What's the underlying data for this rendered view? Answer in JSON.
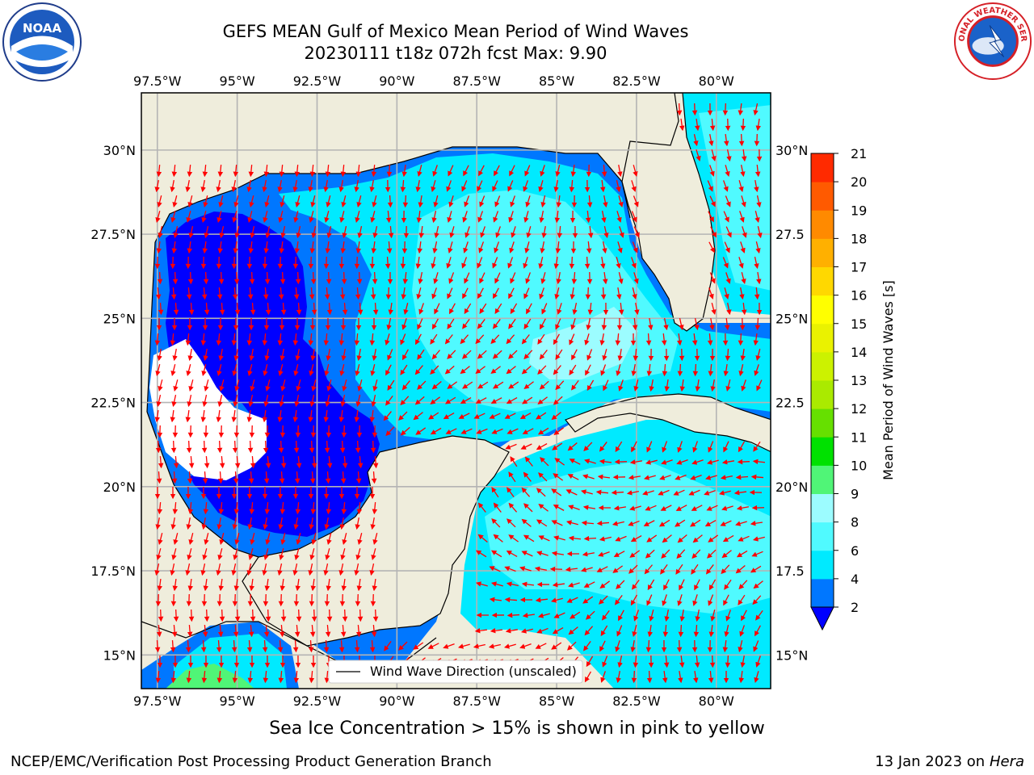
{
  "header": {
    "title_line1": "GEFS MEAN Gulf of Mexico Mean Period of Wind Waves",
    "title_line2": "20230111 t18z 072h fcst   Max: 9.90"
  },
  "logos": {
    "left": "noaa-logo",
    "right": "national-weather-service-logo",
    "left_text": "NOAA",
    "right_text": "NATIONAL WEATHER SERVICE"
  },
  "map": {
    "lon_labels": [
      "97.5°W",
      "95°W",
      "92.5°W",
      "90°W",
      "87.5°W",
      "85°W",
      "82.5°W",
      "80°W"
    ],
    "lat_labels": [
      "30°N",
      "27.5°N",
      "25°N",
      "22.5°N",
      "20°N",
      "17.5°N",
      "15°N"
    ],
    "lat_labels_right": [
      "30°N",
      "27.5",
      "25°N",
      "22.5",
      "20°N",
      "17.5",
      "15°N"
    ],
    "lon_range": [
      -98,
      -78.3
    ],
    "lat_range": [
      14,
      31.7
    ],
    "legend_label": "Wind Wave Direction (unscaled)",
    "land_color": "#efeddc",
    "arrow_color": "#ff0000",
    "grid": true
  },
  "colorbar": {
    "label": "Mean Period of Wind Waves [s]",
    "ticks": [
      "2",
      "4",
      "6",
      "8",
      "9",
      "10",
      "11",
      "12",
      "13",
      "14",
      "15",
      "16",
      "17",
      "18",
      "19",
      "20",
      "21"
    ],
    "colors": [
      "#0077ff",
      "#00eaff",
      "#50faff",
      "#9cfcff",
      "#50f577",
      "#00e100",
      "#66e000",
      "#aaea00",
      "#ccf200",
      "#eaf200",
      "#ffff00",
      "#ffd800",
      "#ffb000",
      "#ff8a00",
      "#ff5a00",
      "#ff2a00",
      "#ff0000"
    ],
    "extend_color": "#0000ff"
  },
  "footer": {
    "ice_note": "Sea Ice Concentration > 15% is shown in pink to yellow",
    "credit": "NCEP/EMC/Verification Post Processing Product Generation Branch",
    "date": "13 Jan 2023 on ",
    "machine": "Hera"
  }
}
